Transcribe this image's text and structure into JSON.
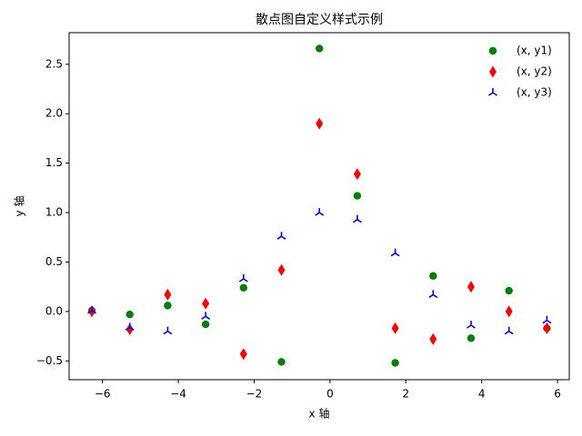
{
  "chart_data": {
    "type": "scatter",
    "title": "散点图自定义样式示例",
    "x_label": "x 轴",
    "y_label": "y 轴",
    "x": [
      -6.28,
      -5.28,
      -4.28,
      -3.28,
      -2.28,
      -1.28,
      -0.28,
      0.72,
      1.72,
      2.72,
      3.72,
      4.72,
      5.72
    ],
    "series": [
      {
        "name": "(x, y1)",
        "color": "#008000",
        "marker": "circle",
        "values": [
          0.01,
          -0.03,
          0.06,
          -0.13,
          0.24,
          -0.51,
          2.66,
          1.17,
          -0.52,
          0.36,
          -0.27,
          0.21,
          -0.17
        ]
      },
      {
        "name": "(x, y2)",
        "color": "#ff0000",
        "marker": "thin-diamond",
        "values": [
          0,
          -0.18,
          0.17,
          0.08,
          -0.43,
          0.42,
          1.9,
          1.39,
          -0.17,
          -0.28,
          0.25,
          0,
          -0.17
        ]
      },
      {
        "name": "(x, y3)",
        "color": "#0000ff",
        "marker": "tri-up",
        "values": [
          0.01,
          -0.16,
          -0.2,
          -0.05,
          0.33,
          0.76,
          1.0,
          0.93,
          0.59,
          0.17,
          -0.14,
          -0.2,
          -0.09
        ]
      }
    ],
    "xlim": [
      -6.88,
      6.31
    ],
    "ylim": [
      -0.69,
      2.82
    ],
    "xticks": [
      {
        "value": -6,
        "label": "−6"
      },
      {
        "value": -4,
        "label": "−4"
      },
      {
        "value": -2,
        "label": "−2"
      },
      0,
      2,
      4,
      6
    ],
    "yticks": [
      {
        "value": -0.5,
        "label": "−0.5"
      },
      {
        "value": 0,
        "label": "0.0"
      },
      0.5,
      {
        "value": 1,
        "label": "1.0"
      },
      1.5,
      {
        "value": 2,
        "label": "2.0"
      },
      2.5
    ],
    "grid": false,
    "legend": "upper right"
  }
}
